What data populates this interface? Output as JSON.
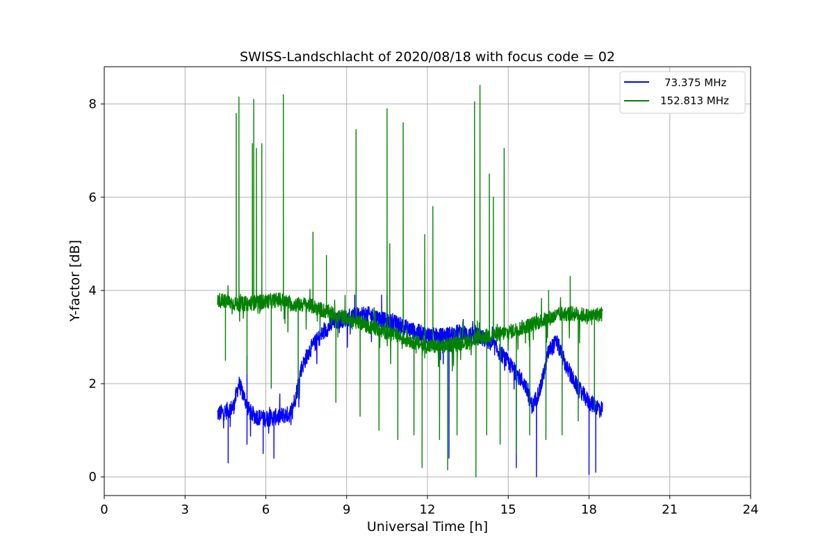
{
  "chart_data": {
    "type": "line",
    "title": "SWISS-Landschlacht of 2020/08/18 with focus code = 02",
    "xlabel": "Universal Time [h]",
    "ylabel": "Y-factor [dB]",
    "xlim": [
      0,
      24
    ],
    "ylim": [
      -0.4,
      8.8
    ],
    "xticks": [
      0,
      3,
      6,
      9,
      12,
      15,
      18,
      21,
      24
    ],
    "yticks": [
      0,
      2,
      4,
      6,
      8
    ],
    "grid": true,
    "legend_position": "top-right",
    "series": [
      {
        "name": "73.375 MHz",
        "color": "#0000ff",
        "x": [
          4.2,
          4.5,
          4.8,
          5.0,
          5.2,
          5.4,
          5.6,
          6.0,
          6.5,
          6.9,
          7.1,
          7.3,
          7.6,
          8.0,
          8.3,
          8.6,
          9.0,
          9.3,
          9.6,
          10.0,
          10.4,
          10.8,
          11.2,
          11.6,
          12.0,
          12.4,
          12.8,
          13.2,
          13.6,
          14.0,
          14.4,
          14.8,
          15.2,
          15.6,
          15.9,
          16.2,
          16.5,
          16.8,
          17.2,
          17.6,
          18.0,
          18.5
        ],
        "values": [
          1.35,
          1.4,
          1.5,
          2.0,
          1.7,
          1.4,
          1.3,
          1.25,
          1.3,
          1.35,
          1.7,
          2.3,
          2.7,
          3.0,
          3.2,
          3.35,
          3.4,
          3.45,
          3.5,
          3.45,
          3.35,
          3.3,
          3.2,
          3.1,
          3.05,
          3.0,
          3.05,
          3.1,
          3.05,
          3.0,
          2.85,
          2.6,
          2.3,
          2.0,
          1.5,
          1.9,
          2.7,
          2.9,
          2.3,
          1.9,
          1.6,
          1.45
        ],
        "dips": [
          [
            4.6,
            0.3
          ],
          [
            5.3,
            0.7
          ],
          [
            5.9,
            0.5
          ],
          [
            6.3,
            0.4
          ],
          [
            12.8,
            0.4
          ],
          [
            15.3,
            0.2
          ],
          [
            16.05,
            0.0
          ],
          [
            18.0,
            0.05
          ],
          [
            18.25,
            0.1
          ]
        ],
        "spikes": [
          [
            5.3,
            2.6
          ],
          [
            9.3,
            3.9
          ],
          [
            10.3,
            3.9
          ],
          [
            10.5,
            3.9
          ]
        ]
      },
      {
        "name": "152.813 MHz",
        "color": "#008000",
        "x": [
          4.2,
          5.0,
          5.8,
          6.5,
          7.0,
          7.5,
          8.0,
          8.5,
          9.0,
          9.5,
          10.0,
          10.5,
          11.0,
          11.5,
          12.0,
          12.5,
          13.0,
          13.5,
          14.0,
          14.5,
          15.0,
          15.5,
          16.0,
          16.5,
          17.0,
          17.5,
          18.0,
          18.5
        ],
        "values": [
          3.8,
          3.7,
          3.75,
          3.8,
          3.7,
          3.7,
          3.6,
          3.5,
          3.4,
          3.3,
          3.2,
          3.1,
          3.0,
          2.9,
          2.8,
          2.8,
          2.85,
          2.9,
          3.0,
          3.05,
          3.1,
          3.2,
          3.3,
          3.4,
          3.5,
          3.5,
          3.45,
          3.5
        ],
        "spikes": [
          [
            4.9,
            7.8
          ],
          [
            5.0,
            8.15
          ],
          [
            5.5,
            7.15
          ],
          [
            5.55,
            8.1
          ],
          [
            5.65,
            7.05
          ],
          [
            5.85,
            7.15
          ],
          [
            6.65,
            8.2
          ],
          [
            7.75,
            5.25
          ],
          [
            8.25,
            4.75
          ],
          [
            9.35,
            7.45
          ],
          [
            10.5,
            7.9
          ],
          [
            10.6,
            5.0
          ],
          [
            11.1,
            7.6
          ],
          [
            11.9,
            5.2
          ],
          [
            12.2,
            5.8
          ],
          [
            13.75,
            8.05
          ],
          [
            13.95,
            8.4
          ],
          [
            14.3,
            6.5
          ],
          [
            14.45,
            6.0
          ],
          [
            14.85,
            7.05
          ],
          [
            16.5,
            4.0
          ],
          [
            17.3,
            4.3
          ]
        ],
        "dips": [
          [
            4.5,
            2.5
          ],
          [
            5.3,
            2.2
          ],
          [
            6.2,
            1.9
          ],
          [
            7.2,
            1.7
          ],
          [
            8.6,
            1.6
          ],
          [
            9.5,
            1.3
          ],
          [
            10.2,
            1.0
          ],
          [
            10.9,
            0.8
          ],
          [
            11.5,
            0.9
          ],
          [
            11.8,
            0.2
          ],
          [
            12.45,
            0.8
          ],
          [
            12.75,
            0.15
          ],
          [
            13.1,
            0.9
          ],
          [
            13.8,
            0.0
          ],
          [
            14.2,
            0.9
          ],
          [
            14.7,
            0.7
          ],
          [
            15.3,
            0.5
          ],
          [
            15.8,
            0.9
          ],
          [
            16.4,
            0.8
          ],
          [
            17.0,
            0.9
          ],
          [
            17.6,
            1.2
          ],
          [
            18.2,
            1.4
          ]
        ]
      }
    ]
  }
}
